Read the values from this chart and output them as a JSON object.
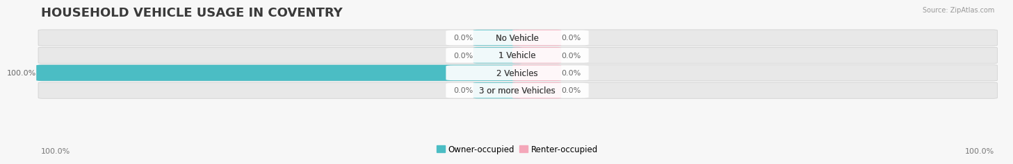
{
  "title": "HOUSEHOLD VEHICLE USAGE IN COVENTRY",
  "source": "Source: ZipAtlas.com",
  "categories": [
    "No Vehicle",
    "1 Vehicle",
    "2 Vehicles",
    "3 or more Vehicles"
  ],
  "owner_values": [
    0.0,
    0.0,
    100.0,
    0.0
  ],
  "renter_values": [
    0.0,
    0.0,
    0.0,
    0.0
  ],
  "owner_color": "#4BBDC4",
  "renter_color": "#F4A7B9",
  "bar_bg_color": "#E8E8E8",
  "title_fontsize": 13,
  "label_fontsize": 8.5,
  "value_fontsize": 8,
  "axis_label_fontsize": 8,
  "xlim": [
    -100,
    100
  ],
  "min_block_size": 8,
  "left_axis_label": "100.0%",
  "right_axis_label": "100.0%",
  "legend_owner": "Owner-occupied",
  "legend_renter": "Renter-occupied",
  "background_color": "#F7F7F7"
}
